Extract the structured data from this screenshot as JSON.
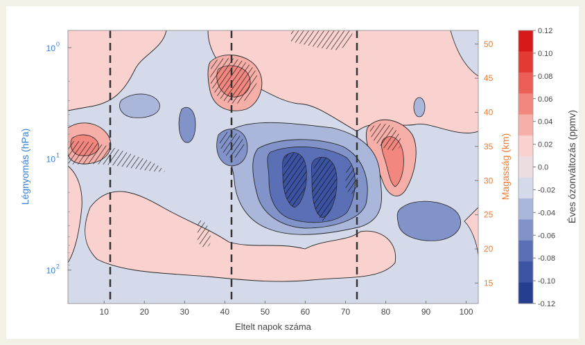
{
  "chart_data": {
    "type": "heatmap",
    "xlabel": "Eltelt napok száma",
    "ylabel_left": "Légnyomás (hPa)",
    "ylabel_right": "Magasság (km)",
    "colorbar_label": "Éves ózonváltozás (ppmv)",
    "xlim": [
      1,
      103
    ],
    "x_ticks": [
      "10",
      "20",
      "30",
      "40",
      "50",
      "60",
      "70",
      "80",
      "90",
      "100"
    ],
    "y_left_ticks": [
      {
        "label": "10",
        "sup": "0",
        "value": 1
      },
      {
        "label": "10",
        "sup": "1",
        "value": 10
      },
      {
        "label": "10",
        "sup": "2",
        "value": 100
      }
    ],
    "y_left_range_hPa": [
      0.7,
      200
    ],
    "y_left_scale": "log",
    "y_right_ticks": [
      "15",
      "20",
      "25",
      "30",
      "35",
      "40",
      "45",
      "50"
    ],
    "y_right_range_km": [
      12,
      52
    ],
    "vertical_dashed_lines_day": [
      12,
      42,
      73
    ],
    "colorbar": {
      "ticks": [
        "0.12",
        "0.10",
        "0.08",
        "0.06",
        "0.04",
        "0.02",
        "0.0",
        "-0.02",
        "-0.04",
        "-0.06",
        "-0.08",
        "-0.10",
        "-0.12"
      ],
      "colors": [
        "#d7191c",
        "#e33a36",
        "#ec5f57",
        "#f2877f",
        "#f6aea8",
        "#f9d2cf",
        "#ecdde1",
        "#d4dae9",
        "#aab7db",
        "#8193c9",
        "#5a6fb5",
        "#3c52a2",
        "#253e8f"
      ]
    },
    "regions": [
      {
        "name": "background",
        "day": [
          1,
          103
        ],
        "km": [
          12,
          52
        ],
        "anomaly": -0.01
      },
      {
        "name": "upper-left positive",
        "day": [
          3,
          22
        ],
        "km": [
          42,
          52
        ],
        "anomaly": 0.01
      },
      {
        "name": "left positive patch",
        "day": [
          1,
          12
        ],
        "km": [
          32,
          38
        ],
        "anomaly": 0.03
      },
      {
        "name": "lower positive band",
        "day": [
          8,
          68
        ],
        "km": [
          14,
          24
        ],
        "anomaly": 0.01
      },
      {
        "name": "day 40 positive",
        "day": [
          37,
          50
        ],
        "km": [
          38,
          48
        ],
        "anomaly": 0.03
      },
      {
        "name": "upper-right positive",
        "day": [
          50,
          100
        ],
        "km": [
          38,
          52
        ],
        "anomaly": 0.01
      },
      {
        "name": "day 80 positive",
        "day": [
          75,
          85
        ],
        "km": [
          29,
          37
        ],
        "anomaly": 0.03
      },
      {
        "name": "central negative",
        "day": [
          46,
          75
        ],
        "km": [
          22,
          34
        ],
        "anomaly": -0.06
      },
      {
        "name": "day 40 negative",
        "day": [
          38,
          45
        ],
        "km": [
          33,
          37
        ],
        "anomaly": -0.04
      },
      {
        "name": "day 24 negative",
        "day": [
          20,
          28
        ],
        "km": [
          37,
          40
        ],
        "anomaly": -0.03
      },
      {
        "name": "day 90 negative",
        "day": [
          84,
          97
        ],
        "km": [
          20,
          25
        ],
        "anomaly": -0.04
      },
      {
        "name": "day 30 negative",
        "day": [
          28,
          32
        ],
        "km": [
          33,
          38
        ],
        "anomaly": -0.03
      }
    ]
  }
}
